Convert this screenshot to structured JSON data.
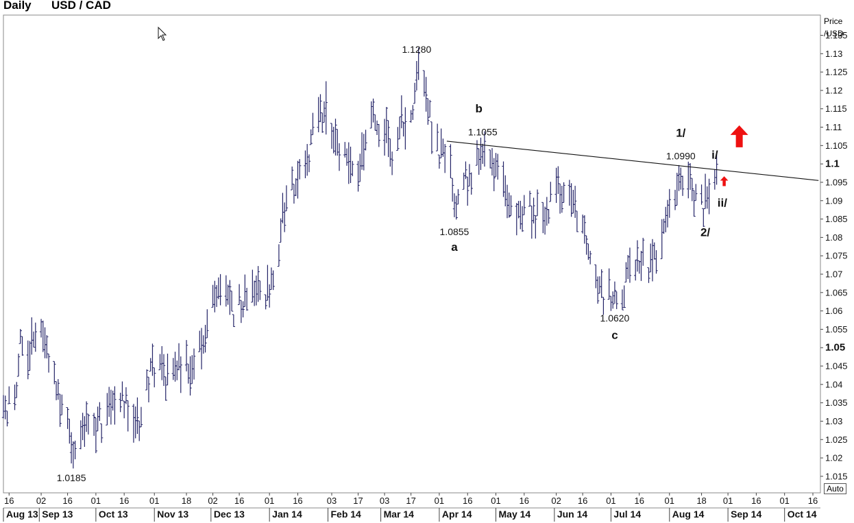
{
  "header": {
    "timeframe": "Daily",
    "symbol": "USD / CAD"
  },
  "axis": {
    "unit_line1": "Price",
    "unit_line2": "/USD",
    "auto_label": "Auto"
  },
  "chart_data": {
    "type": "ohlc-bar",
    "title": "USD / CAD",
    "timeframe": "Daily",
    "ylabel": "Price /USD",
    "ylim": [
      1.0105,
      1.1405
    ],
    "y_ticks": [
      1.015,
      1.02,
      1.025,
      1.03,
      1.035,
      1.04,
      1.045,
      1.05,
      1.055,
      1.06,
      1.065,
      1.07,
      1.075,
      1.08,
      1.085,
      1.09,
      1.095,
      1.1,
      1.105,
      1.11,
      1.115,
      1.12,
      1.125,
      1.13,
      1.135
    ],
    "y_tick_labels": [
      "1.015",
      "1.02",
      "1.025",
      "1.03",
      "1.035",
      "1.04",
      "1.045",
      "1.05",
      "1.055",
      "1.06",
      "1.065",
      "1.07",
      "1.075",
      "1.08",
      "1.085",
      "1.09",
      "1.095",
      "1.1",
      "1.105",
      "1.11",
      "1.115",
      "1.12",
      "1.125",
      "1.13",
      "1.135"
    ],
    "bold_y_ticks": [
      "1.05",
      "1.1"
    ],
    "x_range": [
      "2013-08-13",
      "2014-10-20"
    ],
    "x_day_ticks": [
      {
        "date": "2013-08-16",
        "label": "16"
      },
      {
        "date": "2013-09-02",
        "label": "02"
      },
      {
        "date": "2013-09-16",
        "label": "16"
      },
      {
        "date": "2013-10-01",
        "label": "01"
      },
      {
        "date": "2013-10-16",
        "label": "16"
      },
      {
        "date": "2013-11-01",
        "label": "01"
      },
      {
        "date": "2013-11-18",
        "label": "18"
      },
      {
        "date": "2013-12-02",
        "label": "02"
      },
      {
        "date": "2013-12-16",
        "label": "16"
      },
      {
        "date": "2014-01-01",
        "label": "01"
      },
      {
        "date": "2014-01-16",
        "label": "16"
      },
      {
        "date": "2014-02-03",
        "label": "03"
      },
      {
        "date": "2014-02-17",
        "label": "17"
      },
      {
        "date": "2014-03-03",
        "label": "03"
      },
      {
        "date": "2014-03-17",
        "label": "17"
      },
      {
        "date": "2014-04-01",
        "label": "01"
      },
      {
        "date": "2014-04-16",
        "label": "16"
      },
      {
        "date": "2014-05-01",
        "label": "01"
      },
      {
        "date": "2014-05-16",
        "label": "16"
      },
      {
        "date": "2014-06-02",
        "label": "02"
      },
      {
        "date": "2014-06-16",
        "label": "16"
      },
      {
        "date": "2014-07-01",
        "label": "01"
      },
      {
        "date": "2014-07-16",
        "label": "16"
      },
      {
        "date": "2014-08-01",
        "label": "01"
      },
      {
        "date": "2014-08-18",
        "label": "18"
      },
      {
        "date": "2014-09-01",
        "label": "01"
      },
      {
        "date": "2014-09-16",
        "label": "16"
      },
      {
        "date": "2014-10-01",
        "label": "01"
      },
      {
        "date": "2014-10-16",
        "label": "16"
      }
    ],
    "x_month_labels": [
      {
        "date": "2013-08-01",
        "label": "Aug 13"
      },
      {
        "date": "2013-09-01",
        "label": "Sep 13"
      },
      {
        "date": "2013-10-01",
        "label": "Oct 13"
      },
      {
        "date": "2013-11-01",
        "label": "Nov 13"
      },
      {
        "date": "2013-12-01",
        "label": "Dec 13"
      },
      {
        "date": "2014-01-01",
        "label": "Jan 14"
      },
      {
        "date": "2014-02-01",
        "label": "Feb 14"
      },
      {
        "date": "2014-03-01",
        "label": "Mar 14"
      },
      {
        "date": "2014-04-01",
        "label": "Apr 14"
      },
      {
        "date": "2014-05-01",
        "label": "May 14"
      },
      {
        "date": "2014-06-01",
        "label": "Jun 14"
      },
      {
        "date": "2014-07-01",
        "label": "Jul 14"
      },
      {
        "date": "2014-08-01",
        "label": "Aug 14"
      },
      {
        "date": "2014-09-01",
        "label": "Sep 14"
      },
      {
        "date": "2014-10-01",
        "label": "Oct 14"
      }
    ],
    "price_path": [
      [
        "2013-08-13",
        1.031
      ],
      [
        "2013-08-19",
        1.036
      ],
      [
        "2013-08-22",
        1.05
      ],
      [
        "2013-08-27",
        1.049
      ],
      [
        "2013-09-02",
        1.053
      ],
      [
        "2013-09-06",
        1.048
      ],
      [
        "2013-09-09",
        1.041
      ],
      [
        "2013-09-12",
        1.033
      ],
      [
        "2013-09-16",
        1.028
      ],
      [
        "2013-09-19",
        1.021
      ],
      [
        "2013-09-23",
        1.028
      ],
      [
        "2013-09-27",
        1.031
      ],
      [
        "2013-10-01",
        1.03
      ],
      [
        "2013-10-07",
        1.031
      ],
      [
        "2013-10-11",
        1.038
      ],
      [
        "2013-10-16",
        1.036
      ],
      [
        "2013-10-21",
        1.029
      ],
      [
        "2013-10-24",
        1.03
      ],
      [
        "2013-10-28",
        1.04
      ],
      [
        "2013-11-01",
        1.045
      ],
      [
        "2013-11-07",
        1.042
      ],
      [
        "2013-11-12",
        1.044
      ],
      [
        "2013-11-18",
        1.046
      ],
      [
        "2013-11-22",
        1.044
      ],
      [
        "2013-11-27",
        1.053
      ],
      [
        "2013-12-02",
        1.062
      ],
      [
        "2013-12-06",
        1.066
      ],
      [
        "2013-12-11",
        1.06
      ],
      [
        "2013-12-16",
        1.062
      ],
      [
        "2013-12-20",
        1.066
      ],
      [
        "2013-12-24",
        1.065
      ],
      [
        "2013-12-30",
        1.064
      ],
      [
        "2014-01-02",
        1.068
      ],
      [
        "2014-01-06",
        1.078
      ],
      [
        "2014-01-09",
        1.088
      ],
      [
        "2014-01-13",
        1.093
      ],
      [
        "2014-01-17",
        1.096
      ],
      [
        "2014-01-21",
        1.1
      ],
      [
        "2014-01-24",
        1.109
      ],
      [
        "2014-01-28",
        1.112
      ],
      [
        "2014-01-31",
        1.115
      ],
      [
        "2014-02-04",
        1.108
      ],
      [
        "2014-02-07",
        1.104
      ],
      [
        "2014-02-11",
        1.1
      ],
      [
        "2014-02-14",
        1.098
      ],
      [
        "2014-02-18",
        1.097
      ],
      [
        "2014-02-21",
        1.106
      ],
      [
        "2014-02-26",
        1.112
      ],
      [
        "2014-03-03",
        1.109
      ],
      [
        "2014-03-07",
        1.104
      ],
      [
        "2014-03-12",
        1.111
      ],
      [
        "2014-03-17",
        1.112
      ],
      [
        "2014-03-20",
        1.125
      ],
      [
        "2014-03-25",
        1.122
      ],
      [
        "2014-03-28",
        1.108
      ],
      [
        "2014-04-02",
        1.103
      ],
      [
        "2014-04-07",
        1.097
      ],
      [
        "2014-04-10",
        1.088
      ],
      [
        "2014-04-15",
        1.095
      ],
      [
        "2014-04-21",
        1.102
      ],
      [
        "2014-04-28",
        1.104
      ],
      [
        "2014-05-02",
        1.096
      ],
      [
        "2014-05-07",
        1.089
      ],
      [
        "2014-05-12",
        1.087
      ],
      [
        "2014-05-16",
        1.089
      ],
      [
        "2014-05-22",
        1.086
      ],
      [
        "2014-05-28",
        1.088
      ],
      [
        "2014-06-03",
        1.094
      ],
      [
        "2014-06-06",
        1.093
      ],
      [
        "2014-06-11",
        1.088
      ],
      [
        "2014-06-16",
        1.084
      ],
      [
        "2014-06-19",
        1.077
      ],
      [
        "2014-06-23",
        1.069
      ],
      [
        "2014-06-27",
        1.064
      ],
      [
        "2014-07-02",
        1.065
      ],
      [
        "2014-07-08",
        1.066
      ],
      [
        "2014-07-11",
        1.071
      ],
      [
        "2014-07-16",
        1.075
      ],
      [
        "2014-07-22",
        1.073
      ],
      [
        "2014-07-28",
        1.079
      ],
      [
        "2014-08-01",
        1.088
      ],
      [
        "2014-08-05",
        1.093
      ],
      [
        "2014-08-08",
        1.096
      ],
      [
        "2014-08-12",
        1.093
      ],
      [
        "2014-08-15",
        1.091
      ],
      [
        "2014-08-19",
        1.088
      ],
      [
        "2014-08-22",
        1.095
      ],
      [
        "2014-08-26",
        1.096
      ]
    ],
    "price_path_anchors": [
      {
        "date": "2013-09-18",
        "high": 1.027,
        "low": 1.0185
      },
      {
        "date": "2014-01-31",
        "high": 1.1225,
        "low": 1.108
      },
      {
        "date": "2014-03-20",
        "high": 1.128,
        "low": 1.12
      },
      {
        "date": "2014-04-09",
        "high": 1.092,
        "low": 1.0855
      },
      {
        "date": "2014-04-24",
        "high": 1.1055,
        "low": 1.1
      },
      {
        "date": "2014-07-03",
        "high": 1.068,
        "low": 1.062
      },
      {
        "date": "2014-08-07",
        "high": 1.099,
        "low": 1.093
      },
      {
        "date": "2014-08-25",
        "high": 1.0985,
        "low": 1.093
      }
    ],
    "trendline": {
      "start": [
        "2014-04-05",
        1.1062
      ],
      "end": [
        "2014-10-19",
        1.0955
      ]
    },
    "price_labels": [
      {
        "date": "2013-09-18",
        "value": 1.0185,
        "text": "1.0185",
        "pos": "below"
      },
      {
        "date": "2014-03-20",
        "value": 1.128,
        "text": "1.1280",
        "pos": "above"
      },
      {
        "date": "2014-04-09",
        "value": 1.0855,
        "text": "1.0855",
        "pos": "below"
      },
      {
        "date": "2014-04-24",
        "value": 1.1055,
        "text": "1.1055",
        "pos": "above"
      },
      {
        "date": "2014-07-03",
        "value": 1.062,
        "text": "1.0620",
        "pos": "below"
      },
      {
        "date": "2014-08-07",
        "value": 1.099,
        "text": "1.0990",
        "pos": "above"
      }
    ],
    "wave_labels": [
      {
        "text": "b",
        "date": "2014-04-22",
        "value": 1.1151
      },
      {
        "text": "a",
        "date": "2014-04-09",
        "value": 1.0775
      },
      {
        "text": "c",
        "date": "2014-07-03",
        "value": 1.0535
      },
      {
        "text": "1/",
        "date": "2014-08-07",
        "value": 1.1085
      },
      {
        "text": "i/",
        "date": "2014-08-25",
        "value": 1.1025
      },
      {
        "text": "ii/",
        "date": "2014-08-29",
        "value": 1.0895
      },
      {
        "text": "2/",
        "date": "2014-08-20",
        "value": 1.0815
      }
    ],
    "arrows": [
      {
        "date": "2014-09-07",
        "value": 1.1075,
        "size": "large",
        "color": "#ee1111"
      },
      {
        "date": "2014-08-30",
        "value": 1.0953,
        "size": "small",
        "color": "#ee1111"
      }
    ],
    "bar_color": "#222266",
    "grid": false
  }
}
